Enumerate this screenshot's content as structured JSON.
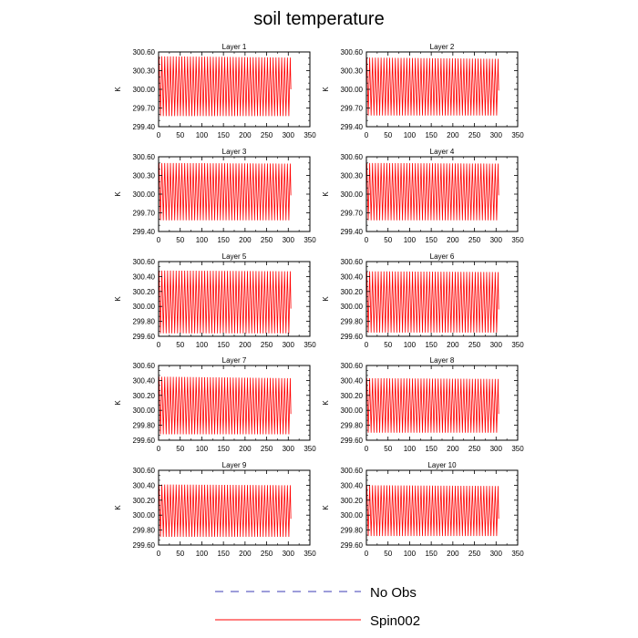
{
  "title": "soil temperature",
  "colors": {
    "spin": "#ff0000",
    "noobs": "#3b3bb5",
    "axis": "#000000"
  },
  "legend": {
    "entries": [
      {
        "label": "No Obs",
        "style": "dashed",
        "color": "#3b3bb5"
      },
      {
        "label": "Spin002",
        "style": "solid",
        "color": "#ff0000"
      }
    ]
  },
  "chart_data": [
    {
      "type": "line",
      "title": "Layer 1",
      "xlabel": "",
      "ylabel": "K",
      "xlim": [
        0,
        350
      ],
      "ylim": [
        299.4,
        300.6
      ],
      "xticks": [
        0,
        50,
        100,
        150,
        200,
        250,
        300,
        350
      ],
      "xtick_labels": [
        "0",
        "50",
        "100",
        "150",
        "200",
        "250",
        "300",
        "350"
      ],
      "yticks": [
        299.4,
        299.7,
        300.0,
        300.3,
        300.6
      ],
      "ytick_labels": [
        "299.40",
        "299.70",
        "300.00",
        "300.30",
        "300.60"
      ],
      "series": [
        {
          "name": "Spin002",
          "x_range": [
            1,
            306
          ],
          "period": 6.6,
          "max_start": 300.53,
          "max_end": 300.51,
          "min": 299.57,
          "final": 300.0
        }
      ]
    },
    {
      "type": "line",
      "title": "Layer 2",
      "xlabel": "",
      "ylabel": "K",
      "xlim": [
        0,
        350
      ],
      "ylim": [
        299.4,
        300.6
      ],
      "xticks": [
        0,
        50,
        100,
        150,
        200,
        250,
        300,
        350
      ],
      "xtick_labels": [
        "0",
        "50",
        "100",
        "150",
        "200",
        "250",
        "300",
        "350"
      ],
      "yticks": [
        299.4,
        299.7,
        300.0,
        300.3,
        300.6
      ],
      "ytick_labels": [
        "299.40",
        "299.70",
        "300.00",
        "300.30",
        "300.60"
      ],
      "series": [
        {
          "name": "Spin002",
          "x_range": [
            1,
            306
          ],
          "period": 6.6,
          "max_start": 300.51,
          "max_end": 300.49,
          "min": 299.58,
          "final": 299.98
        }
      ]
    },
    {
      "type": "line",
      "title": "Layer 3",
      "xlabel": "",
      "ylabel": "K",
      "xlim": [
        0,
        350
      ],
      "ylim": [
        299.4,
        300.6
      ],
      "xticks": [
        0,
        50,
        100,
        150,
        200,
        250,
        300,
        350
      ],
      "xtick_labels": [
        "0",
        "50",
        "100",
        "150",
        "200",
        "250",
        "300",
        "350"
      ],
      "yticks": [
        299.4,
        299.7,
        300.0,
        300.3,
        300.6
      ],
      "ytick_labels": [
        "299.40",
        "299.70",
        "300.00",
        "300.30",
        "300.60"
      ],
      "series": [
        {
          "name": "Spin002",
          "x_range": [
            1,
            306
          ],
          "period": 6.6,
          "max_start": 300.5,
          "max_end": 300.49,
          "min": 299.58,
          "final": 299.98
        }
      ]
    },
    {
      "type": "line",
      "title": "Layer 4",
      "xlabel": "",
      "ylabel": "K",
      "xlim": [
        0,
        350
      ],
      "ylim": [
        299.4,
        300.6
      ],
      "xticks": [
        0,
        50,
        100,
        150,
        200,
        250,
        300,
        350
      ],
      "xtick_labels": [
        "0",
        "50",
        "100",
        "150",
        "200",
        "250",
        "300",
        "350"
      ],
      "yticks": [
        299.4,
        299.7,
        300.0,
        300.3,
        300.6
      ],
      "ytick_labels": [
        "299.40",
        "299.70",
        "300.00",
        "300.30",
        "300.60"
      ],
      "series": [
        {
          "name": "Spin002",
          "x_range": [
            1,
            306
          ],
          "period": 6.6,
          "max_start": 300.5,
          "max_end": 300.49,
          "min": 299.58,
          "final": 299.98
        }
      ]
    },
    {
      "type": "line",
      "title": "Layer 5",
      "xlabel": "",
      "ylabel": "K",
      "xlim": [
        0,
        350
      ],
      "ylim": [
        299.6,
        300.6
      ],
      "xticks": [
        0,
        50,
        100,
        150,
        200,
        250,
        300,
        350
      ],
      "xtick_labels": [
        "0",
        "50",
        "100",
        "150",
        "200",
        "250",
        "300",
        "350"
      ],
      "yticks": [
        299.6,
        299.8,
        300.0,
        300.2,
        300.4,
        300.6
      ],
      "ytick_labels": [
        "299.60",
        "299.80",
        "300.00",
        "300.20",
        "300.40",
        "300.60"
      ],
      "series": [
        {
          "name": "Spin002",
          "x_range": [
            1,
            306
          ],
          "period": 6.6,
          "max_start": 300.48,
          "max_end": 300.47,
          "min": 299.64,
          "final": 299.97
        }
      ]
    },
    {
      "type": "line",
      "title": "Layer 6",
      "xlabel": "",
      "ylabel": "K",
      "xlim": [
        0,
        350
      ],
      "ylim": [
        299.6,
        300.6
      ],
      "xticks": [
        0,
        50,
        100,
        150,
        200,
        250,
        300,
        350
      ],
      "xtick_labels": [
        "0",
        "50",
        "100",
        "150",
        "200",
        "250",
        "300",
        "350"
      ],
      "yticks": [
        299.6,
        299.8,
        300.0,
        300.2,
        300.4,
        300.6
      ],
      "ytick_labels": [
        "299.60",
        "299.80",
        "300.00",
        "300.20",
        "300.40",
        "300.60"
      ],
      "series": [
        {
          "name": "Spin002",
          "x_range": [
            1,
            306
          ],
          "period": 6.6,
          "max_start": 300.47,
          "max_end": 300.46,
          "min": 299.65,
          "final": 299.96
        }
      ]
    },
    {
      "type": "line",
      "title": "Layer 7",
      "xlabel": "",
      "ylabel": "K",
      "xlim": [
        0,
        350
      ],
      "ylim": [
        299.6,
        300.6
      ],
      "xticks": [
        0,
        50,
        100,
        150,
        200,
        250,
        300,
        350
      ],
      "xtick_labels": [
        "0",
        "50",
        "100",
        "150",
        "200",
        "250",
        "300",
        "350"
      ],
      "yticks": [
        299.6,
        299.8,
        300.0,
        300.2,
        300.4,
        300.6
      ],
      "ytick_labels": [
        "299.60",
        "299.80",
        "300.00",
        "300.20",
        "300.40",
        "300.60"
      ],
      "series": [
        {
          "name": "Spin002",
          "x_range": [
            1,
            306
          ],
          "period": 6.6,
          "max_start": 300.45,
          "max_end": 300.43,
          "min": 299.68,
          "final": 299.95
        }
      ]
    },
    {
      "type": "line",
      "title": "Layer 8",
      "xlabel": "",
      "ylabel": "K",
      "xlim": [
        0,
        350
      ],
      "ylim": [
        299.6,
        300.6
      ],
      "xticks": [
        0,
        50,
        100,
        150,
        200,
        250,
        300,
        350
      ],
      "xtick_labels": [
        "0",
        "50",
        "100",
        "150",
        "200",
        "250",
        "300",
        "350"
      ],
      "yticks": [
        299.6,
        299.8,
        300.0,
        300.2,
        300.4,
        300.6
      ],
      "ytick_labels": [
        "299.60",
        "299.80",
        "300.00",
        "300.20",
        "300.40",
        "300.60"
      ],
      "series": [
        {
          "name": "Spin002",
          "x_range": [
            1,
            306
          ],
          "period": 6.6,
          "max_start": 300.43,
          "max_end": 300.42,
          "min": 299.7,
          "final": 299.95
        }
      ]
    },
    {
      "type": "line",
      "title": "Layer 9",
      "xlabel": "",
      "ylabel": "K",
      "xlim": [
        0,
        350
      ],
      "ylim": [
        299.6,
        300.6
      ],
      "xticks": [
        0,
        50,
        100,
        150,
        200,
        250,
        300,
        350
      ],
      "xtick_labels": [
        "0",
        "50",
        "100",
        "150",
        "200",
        "250",
        "300",
        "350"
      ],
      "yticks": [
        299.6,
        299.8,
        300.0,
        300.2,
        300.4,
        300.6
      ],
      "ytick_labels": [
        "299.60",
        "299.80",
        "300.00",
        "300.20",
        "300.40",
        "300.60"
      ],
      "series": [
        {
          "name": "Spin002",
          "x_range": [
            1,
            306
          ],
          "period": 6.6,
          "max_start": 300.41,
          "max_end": 300.4,
          "min": 299.71,
          "final": 299.95
        }
      ]
    },
    {
      "type": "line",
      "title": "Layer 10",
      "xlabel": "",
      "ylabel": "K",
      "xlim": [
        0,
        350
      ],
      "ylim": [
        299.6,
        300.6
      ],
      "xticks": [
        0,
        50,
        100,
        150,
        200,
        250,
        300,
        350
      ],
      "xtick_labels": [
        "0",
        "50",
        "100",
        "150",
        "200",
        "250",
        "300",
        "350"
      ],
      "yticks": [
        299.6,
        299.8,
        300.0,
        300.2,
        300.4,
        300.6
      ],
      "ytick_labels": [
        "299.60",
        "299.80",
        "300.00",
        "300.20",
        "300.40",
        "300.60"
      ],
      "series": [
        {
          "name": "Spin002",
          "x_range": [
            1,
            306
          ],
          "period": 6.6,
          "max_start": 300.4,
          "max_end": 300.39,
          "min": 299.72,
          "final": 299.95
        }
      ]
    }
  ]
}
